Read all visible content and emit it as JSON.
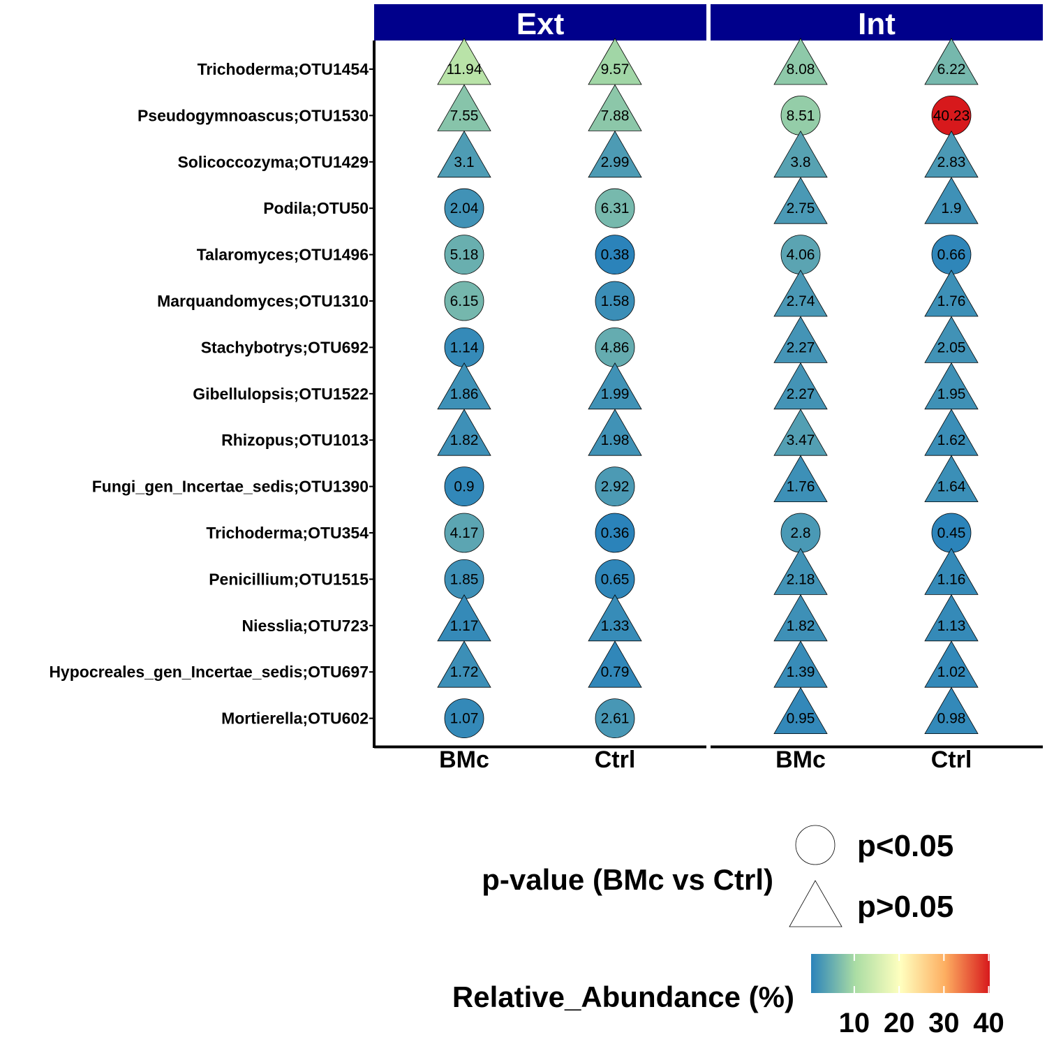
{
  "chart_data": {
    "type": "scatter",
    "facets": [
      "Ext",
      "Int"
    ],
    "groups": [
      "BMc",
      "Ctrl"
    ],
    "taxa": [
      "Trichoderma;OTU1454",
      "Pseudogymnoascus;OTU1530",
      "Solicoccozyma;OTU1429",
      "Podila;OTU50",
      "Talaromyces;OTU1496",
      "Marquandomyces;OTU1310",
      "Stachybotrys;OTU692",
      "Gibellulopsis;OTU1522",
      "Rhizopus;OTU1013",
      "Fungi_gen_Incertae_sedis;OTU1390",
      "Trichoderma;OTU354",
      "Penicillium;OTU1515",
      "Niesslia;OTU723",
      "Hypocreales_gen_Incertae_sedis;OTU697",
      "Mortierella;OTU602"
    ],
    "cells": [
      {
        "facet": "Ext",
        "group": "BMc",
        "values": [
          11.94,
          7.55,
          3.1,
          2.04,
          5.18,
          6.15,
          1.14,
          1.86,
          1.82,
          0.9,
          4.17,
          1.85,
          1.17,
          1.72,
          1.07
        ],
        "shapes": [
          "triangle",
          "triangle",
          "triangle",
          "circle",
          "circle",
          "circle",
          "circle",
          "triangle",
          "triangle",
          "circle",
          "circle",
          "circle",
          "triangle",
          "triangle",
          "circle"
        ]
      },
      {
        "facet": "Ext",
        "group": "Ctrl",
        "values": [
          9.57,
          7.88,
          2.99,
          6.31,
          0.38,
          1.58,
          4.86,
          1.99,
          1.98,
          2.92,
          0.36,
          0.65,
          1.33,
          0.79,
          2.61
        ],
        "shapes": [
          "triangle",
          "triangle",
          "triangle",
          "circle",
          "circle",
          "circle",
          "circle",
          "triangle",
          "triangle",
          "circle",
          "circle",
          "circle",
          "triangle",
          "triangle",
          "circle"
        ]
      },
      {
        "facet": "Int",
        "group": "BMc",
        "values": [
          8.08,
          8.51,
          3.8,
          2.75,
          4.06,
          2.74,
          2.27,
          2.27,
          3.47,
          1.76,
          2.8,
          2.18,
          1.82,
          1.39,
          0.95
        ],
        "shapes": [
          "triangle",
          "circle",
          "triangle",
          "triangle",
          "circle",
          "triangle",
          "triangle",
          "triangle",
          "triangle",
          "triangle",
          "circle",
          "triangle",
          "triangle",
          "triangle",
          "triangle"
        ]
      },
      {
        "facet": "Int",
        "group": "Ctrl",
        "values": [
          6.22,
          40.23,
          2.83,
          1.9,
          0.66,
          1.76,
          2.05,
          1.95,
          1.62,
          1.64,
          0.45,
          1.16,
          1.13,
          1.02,
          0.98
        ],
        "shapes": [
          "triangle",
          "circle",
          "triangle",
          "triangle",
          "circle",
          "triangle",
          "triangle",
          "triangle",
          "triangle",
          "triangle",
          "circle",
          "triangle",
          "triangle",
          "triangle",
          "triangle"
        ]
      }
    ],
    "shape_legend": {
      "title": "p-value (BMc vs Ctrl)",
      "items": [
        {
          "shape": "circle",
          "label": "p<0.05"
        },
        {
          "shape": "triangle",
          "label": "p>0.05"
        }
      ]
    },
    "color_legend": {
      "title": "Relative_Abundance (%)",
      "ticks": [
        10,
        20,
        30,
        40
      ],
      "range": [
        0.36,
        40.23
      ],
      "palette": [
        "#2b83ba",
        "#abdda4",
        "#ffffbf",
        "#fdae61",
        "#d7191c"
      ]
    },
    "strip_color": "#00008b",
    "grid": false
  }
}
